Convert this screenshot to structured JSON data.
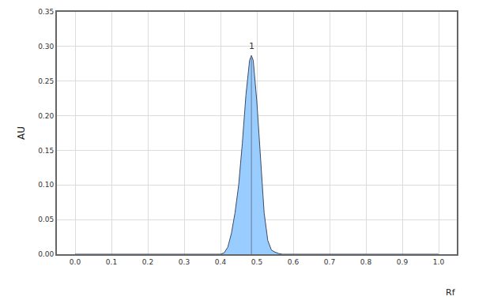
{
  "chart_data": {
    "type": "area",
    "x_label": "Rf",
    "y_label": "AU",
    "x": [
      0.0,
      0.4,
      0.41,
      0.42,
      0.43,
      0.44,
      0.45,
      0.46,
      0.47,
      0.48,
      0.485,
      0.49,
      0.5,
      0.51,
      0.52,
      0.53,
      0.54,
      0.55,
      0.56,
      0.57,
      1.0
    ],
    "values": [
      0,
      0,
      0.002,
      0.01,
      0.03,
      0.06,
      0.1,
      0.16,
      0.23,
      0.28,
      0.287,
      0.28,
      0.22,
      0.14,
      0.06,
      0.02,
      0.006,
      0.003,
      0.001,
      0,
      0
    ],
    "color": "#99ccff",
    "xlim": [
      -0.05,
      1.05
    ],
    "xticks": [
      {
        "value": 0,
        "label": "0.0"
      },
      0.1,
      0.2,
      0.3,
      0.4,
      0.5,
      0.6,
      0.7,
      0.8,
      0.9,
      {
        "value": 1,
        "label": "1.0"
      }
    ],
    "ylim": [
      0,
      0.35
    ],
    "yticks": [
      {
        "value": 0,
        "label": "0.00"
      },
      0.05,
      {
        "value": 0.1,
        "label": "0.10"
      },
      0.15,
      {
        "value": 0.2,
        "label": "0.20"
      },
      0.25,
      {
        "value": 0.3,
        "label": "0.30"
      },
      0.35
    ],
    "annotations": [
      {
        "text": "1",
        "x": 0.485,
        "y": 0.287
      }
    ],
    "grid": true
  }
}
